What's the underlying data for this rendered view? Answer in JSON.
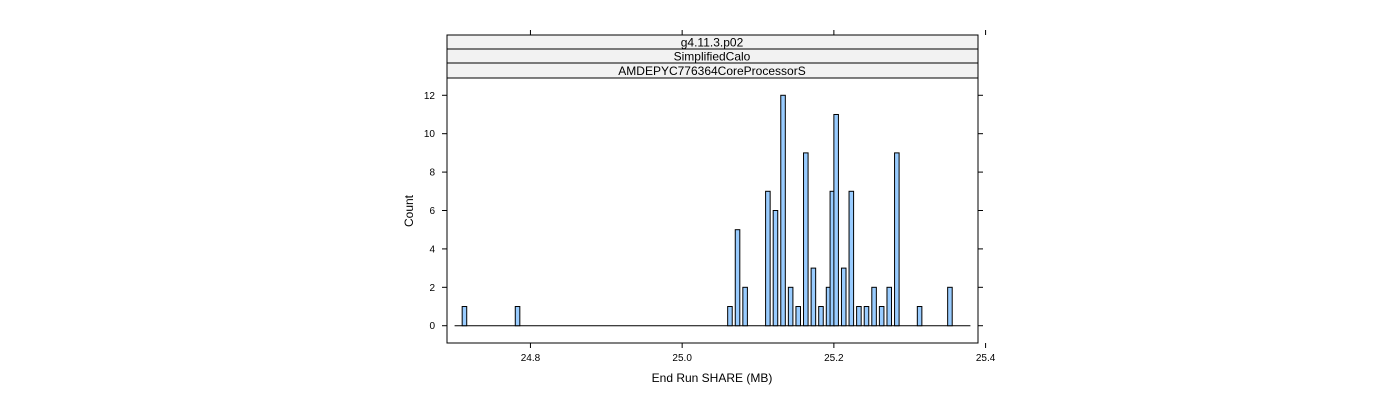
{
  "chart_data": {
    "type": "bar",
    "strips": [
      "g4.11.3.p02",
      "SimplifiedCalo",
      "AMDEPYC776364CoreProcessorS"
    ],
    "xlabel": "End Run SHARE (MB)",
    "ylabel": "Count",
    "xlim": [
      24.69,
      25.39
    ],
    "ylim": [
      -0.9,
      12.9
    ],
    "baseline_range": [
      24.7,
      25.38
    ],
    "bin_width": 0.01,
    "x_ticks": [
      {
        "value": 24.8,
        "label": "24.8"
      },
      {
        "value": 25.0,
        "label": "25.0"
      },
      {
        "value": 25.2,
        "label": "25.2"
      },
      {
        "value": 25.4,
        "label": "25.4"
      }
    ],
    "y_ticks": [
      {
        "value": 0,
        "label": "0"
      },
      {
        "value": 2,
        "label": "2"
      },
      {
        "value": 4,
        "label": "4"
      },
      {
        "value": 6,
        "label": "6"
      },
      {
        "value": 8,
        "label": "8"
      },
      {
        "value": 10,
        "label": "10"
      },
      {
        "value": 12,
        "label": "12"
      }
    ],
    "bins": [
      {
        "x": 24.71,
        "count": 1
      },
      {
        "x": 24.78,
        "count": 1
      },
      {
        "x": 25.06,
        "count": 1
      },
      {
        "x": 25.07,
        "count": 5
      },
      {
        "x": 25.08,
        "count": 2
      },
      {
        "x": 25.11,
        "count": 7
      },
      {
        "x": 25.12,
        "count": 6
      },
      {
        "x": 25.13,
        "count": 12
      },
      {
        "x": 25.14,
        "count": 2
      },
      {
        "x": 25.15,
        "count": 1
      },
      {
        "x": 25.16,
        "count": 9
      },
      {
        "x": 25.17,
        "count": 3
      },
      {
        "x": 25.18,
        "count": 1
      },
      {
        "x": 25.19,
        "count": 2
      },
      {
        "x": 25.195,
        "count": 7
      },
      {
        "x": 25.2,
        "count": 11
      },
      {
        "x": 25.21,
        "count": 3
      },
      {
        "x": 25.22,
        "count": 7
      },
      {
        "x": 25.23,
        "count": 1
      },
      {
        "x": 25.24,
        "count": 1
      },
      {
        "x": 25.25,
        "count": 2
      },
      {
        "x": 25.26,
        "count": 1
      },
      {
        "x": 25.27,
        "count": 2
      },
      {
        "x": 25.28,
        "count": 9
      },
      {
        "x": 25.31,
        "count": 1
      },
      {
        "x": 25.35,
        "count": 2
      }
    ],
    "bar_fill": "#99ccff",
    "strip_fill": "#f2f2f2"
  }
}
